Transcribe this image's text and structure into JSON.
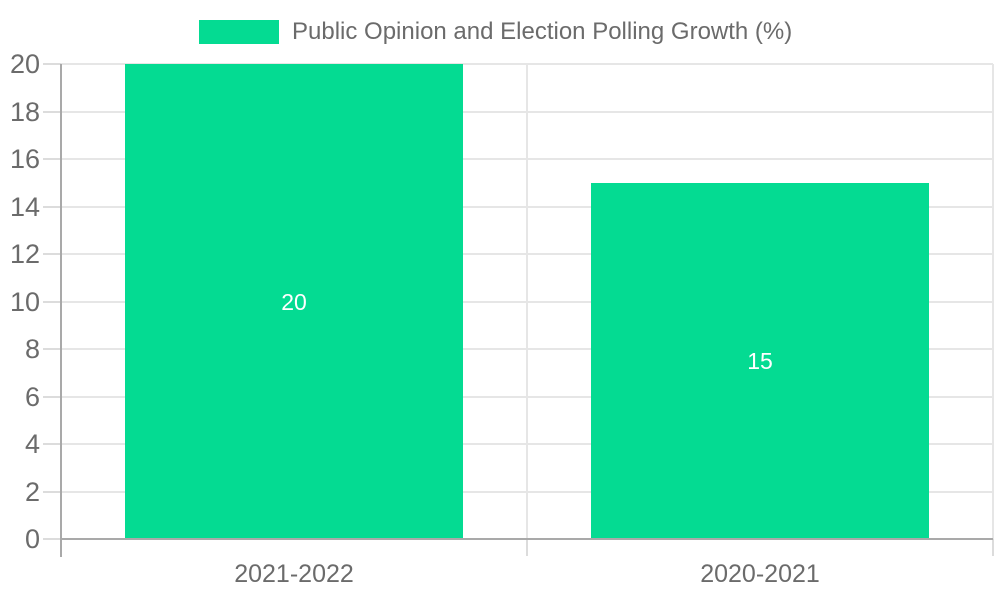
{
  "chart_data": {
    "type": "bar",
    "title": "",
    "legend": {
      "label": "Public Opinion and Election Polling Growth (%)",
      "position": "top-center"
    },
    "categories": [
      "2021-2022",
      "2020-2021"
    ],
    "series": [
      {
        "name": "Public Opinion and Election Polling Growth (%)",
        "values": [
          20,
          15
        ]
      }
    ],
    "data_labels": [
      "20",
      "15"
    ],
    "xlabel": "",
    "ylabel": "",
    "ylim": [
      0,
      20
    ],
    "ytick_step": 2,
    "yticks": [
      0,
      2,
      4,
      6,
      8,
      10,
      12,
      14,
      16,
      18,
      20
    ],
    "grid": {
      "horizontal": true,
      "vertical_category_boundaries": true
    },
    "legend_visible": true,
    "colors": {
      "bar": "#04DB92",
      "gridline": "#e6e6e6",
      "axis_line": "#a9a9a9",
      "tick_mark": "#dcdcdc",
      "axis_label_text": "#6b6b6b",
      "legend_text": "#6b6b6b",
      "value_label_text": "#ffffff",
      "background": "#ffffff"
    }
  }
}
